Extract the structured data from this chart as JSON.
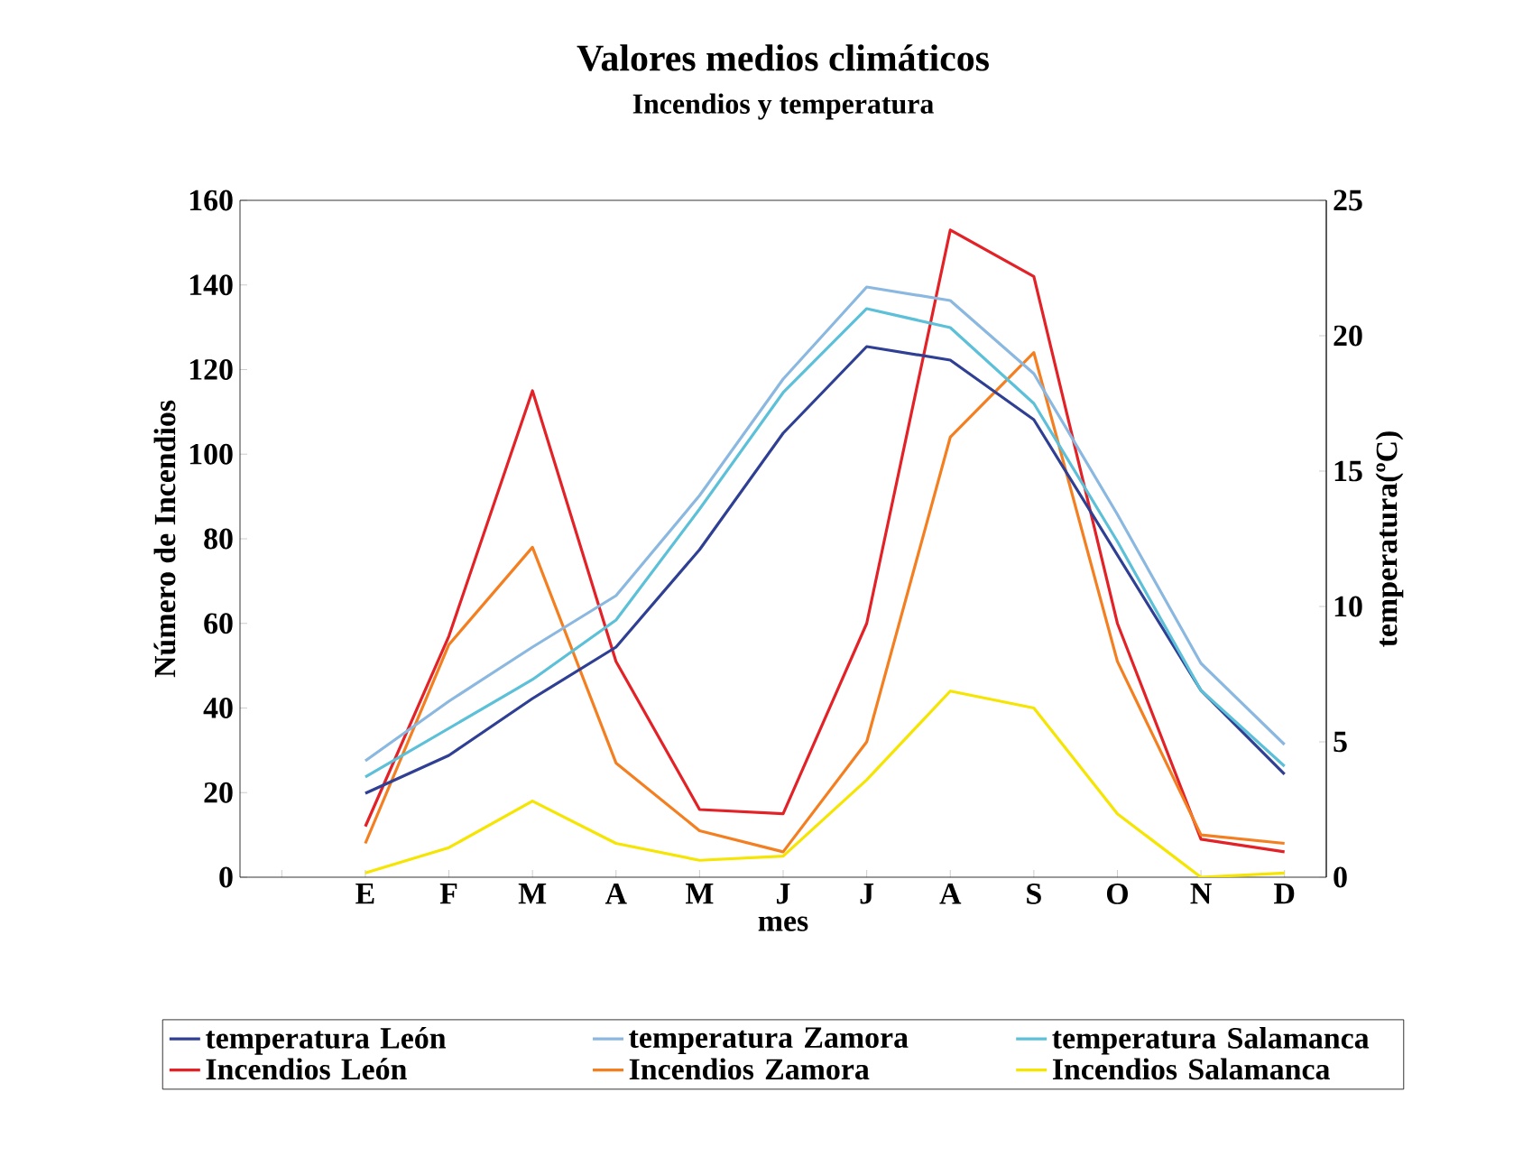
{
  "chart_data": {
    "type": "line",
    "title": "Valores medios climáticos",
    "subtitle": "Incendios y temperatura",
    "xlabel": "mes",
    "ylabel": "Número de Incendios",
    "y2label": "temperatura(ºC)",
    "categories": [
      null,
      "E",
      "F",
      "M",
      "A",
      "M",
      "J",
      "J",
      "A",
      "S",
      "O",
      "N",
      "D"
    ],
    "ylim": [
      0,
      160
    ],
    "yticks": [
      0,
      20,
      40,
      60,
      80,
      100,
      120,
      140,
      160
    ],
    "y2lim": [
      0,
      25
    ],
    "y2ticks": [
      0,
      5,
      10,
      15,
      20,
      25
    ],
    "legend": "bottom",
    "marker": "none",
    "series": [
      {
        "name": "temperatura León",
        "color": "#2e3f94",
        "axis": "y2",
        "values": [
          null,
          3.1,
          4.5,
          6.6,
          8.5,
          12.1,
          16.4,
          19.6,
          19.1,
          16.9,
          11.9,
          6.9,
          3.8
        ]
      },
      {
        "name": "temperatura Zamora",
        "color": "#8ab8e0",
        "axis": "y2",
        "values": [
          null,
          4.3,
          6.5,
          8.5,
          10.4,
          14.1,
          18.4,
          21.8,
          21.3,
          18.6,
          13.4,
          7.9,
          4.9
        ]
      },
      {
        "name": "temperatura Salamanca",
        "color": "#5bc0d8",
        "axis": "y2",
        "values": [
          null,
          3.7,
          5.5,
          7.3,
          9.5,
          13.6,
          17.9,
          21.0,
          20.3,
          17.5,
          12.4,
          6.9,
          4.1
        ]
      },
      {
        "name": "Incendios León",
        "color": "#e32227",
        "values": [
          null,
          12,
          57,
          115,
          51,
          16,
          15,
          60,
          153,
          142,
          60,
          9,
          6
        ]
      },
      {
        "name": "Incendios Zamora",
        "color": "#f47f20",
        "values": [
          null,
          8,
          55,
          78,
          27,
          11,
          6,
          32,
          104,
          124,
          51,
          10,
          8
        ]
      },
      {
        "name": "Incendios Salamanca",
        "color": "#f5e500",
        "values": [
          null,
          1,
          7,
          18,
          8,
          4,
          5,
          23,
          44,
          40,
          15,
          0,
          1
        ]
      }
    ]
  }
}
